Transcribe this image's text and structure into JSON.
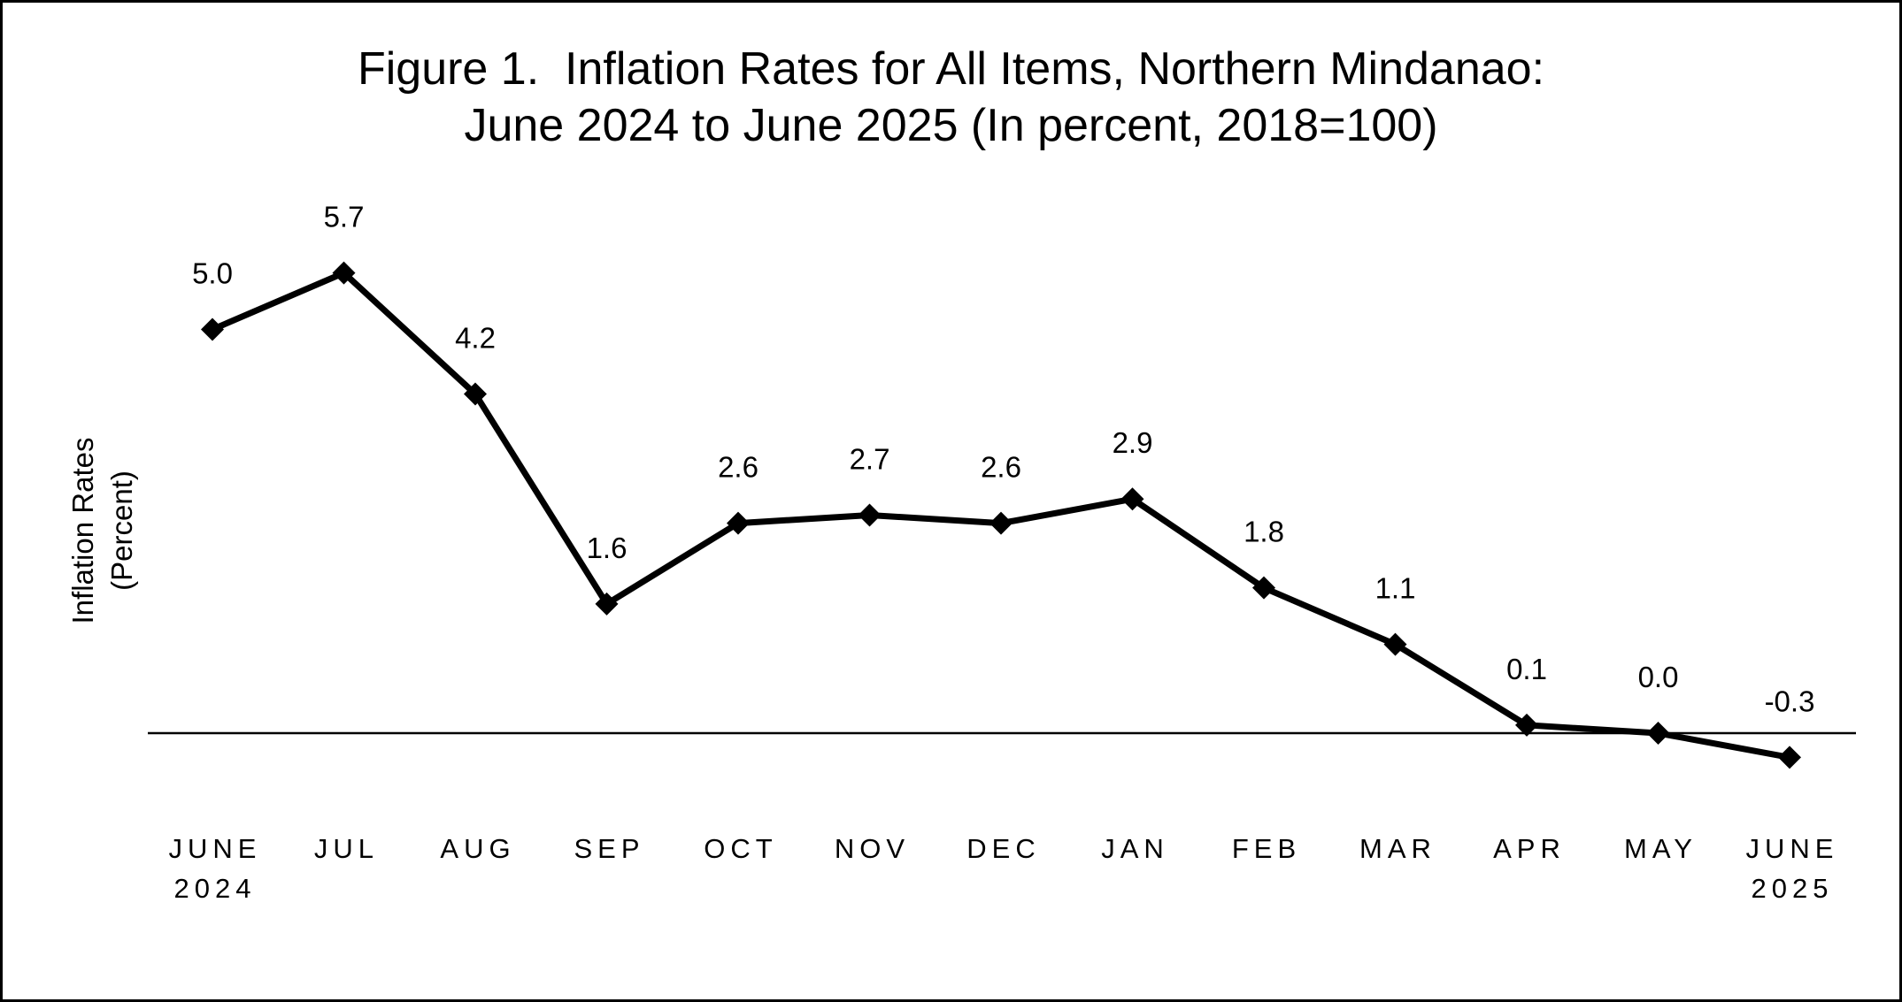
{
  "chart_data": {
    "type": "line",
    "title": [
      "Figure 1.  Inflation Rates for All Items, Northern Mindanao:",
      "June 2024 to June 2025 (In percent, 2018=100)"
    ],
    "ylabel": [
      "Inflation Rates",
      "(Percent)"
    ],
    "xlabel": "",
    "categories": [
      [
        "JUNE",
        "2024"
      ],
      [
        "JUL"
      ],
      [
        "AUG"
      ],
      [
        "SEP"
      ],
      [
        "OCT"
      ],
      [
        "NOV"
      ],
      [
        "DEC"
      ],
      [
        "JAN"
      ],
      [
        "FEB"
      ],
      [
        "MAR"
      ],
      [
        "APR"
      ],
      [
        "MAY"
      ],
      [
        "JUNE",
        "2025"
      ]
    ],
    "series": [
      {
        "values": [
          5.0,
          5.7,
          4.2,
          1.6,
          2.6,
          2.7,
          2.6,
          2.9,
          1.8,
          1.1,
          0.1,
          0.0,
          -0.3
        ],
        "data_labels": [
          "5.0",
          "5.7",
          "4.2",
          "1.6",
          "2.6",
          "2.7",
          "2.6",
          "2.9",
          "1.8",
          "1.1",
          "0.1",
          "0.0",
          "-0.3"
        ],
        "marker": "diamond",
        "color": "#000000"
      }
    ],
    "ylim": [
      -0.5,
      6.0
    ],
    "grid": false,
    "legend": "none",
    "zero_line": true
  }
}
